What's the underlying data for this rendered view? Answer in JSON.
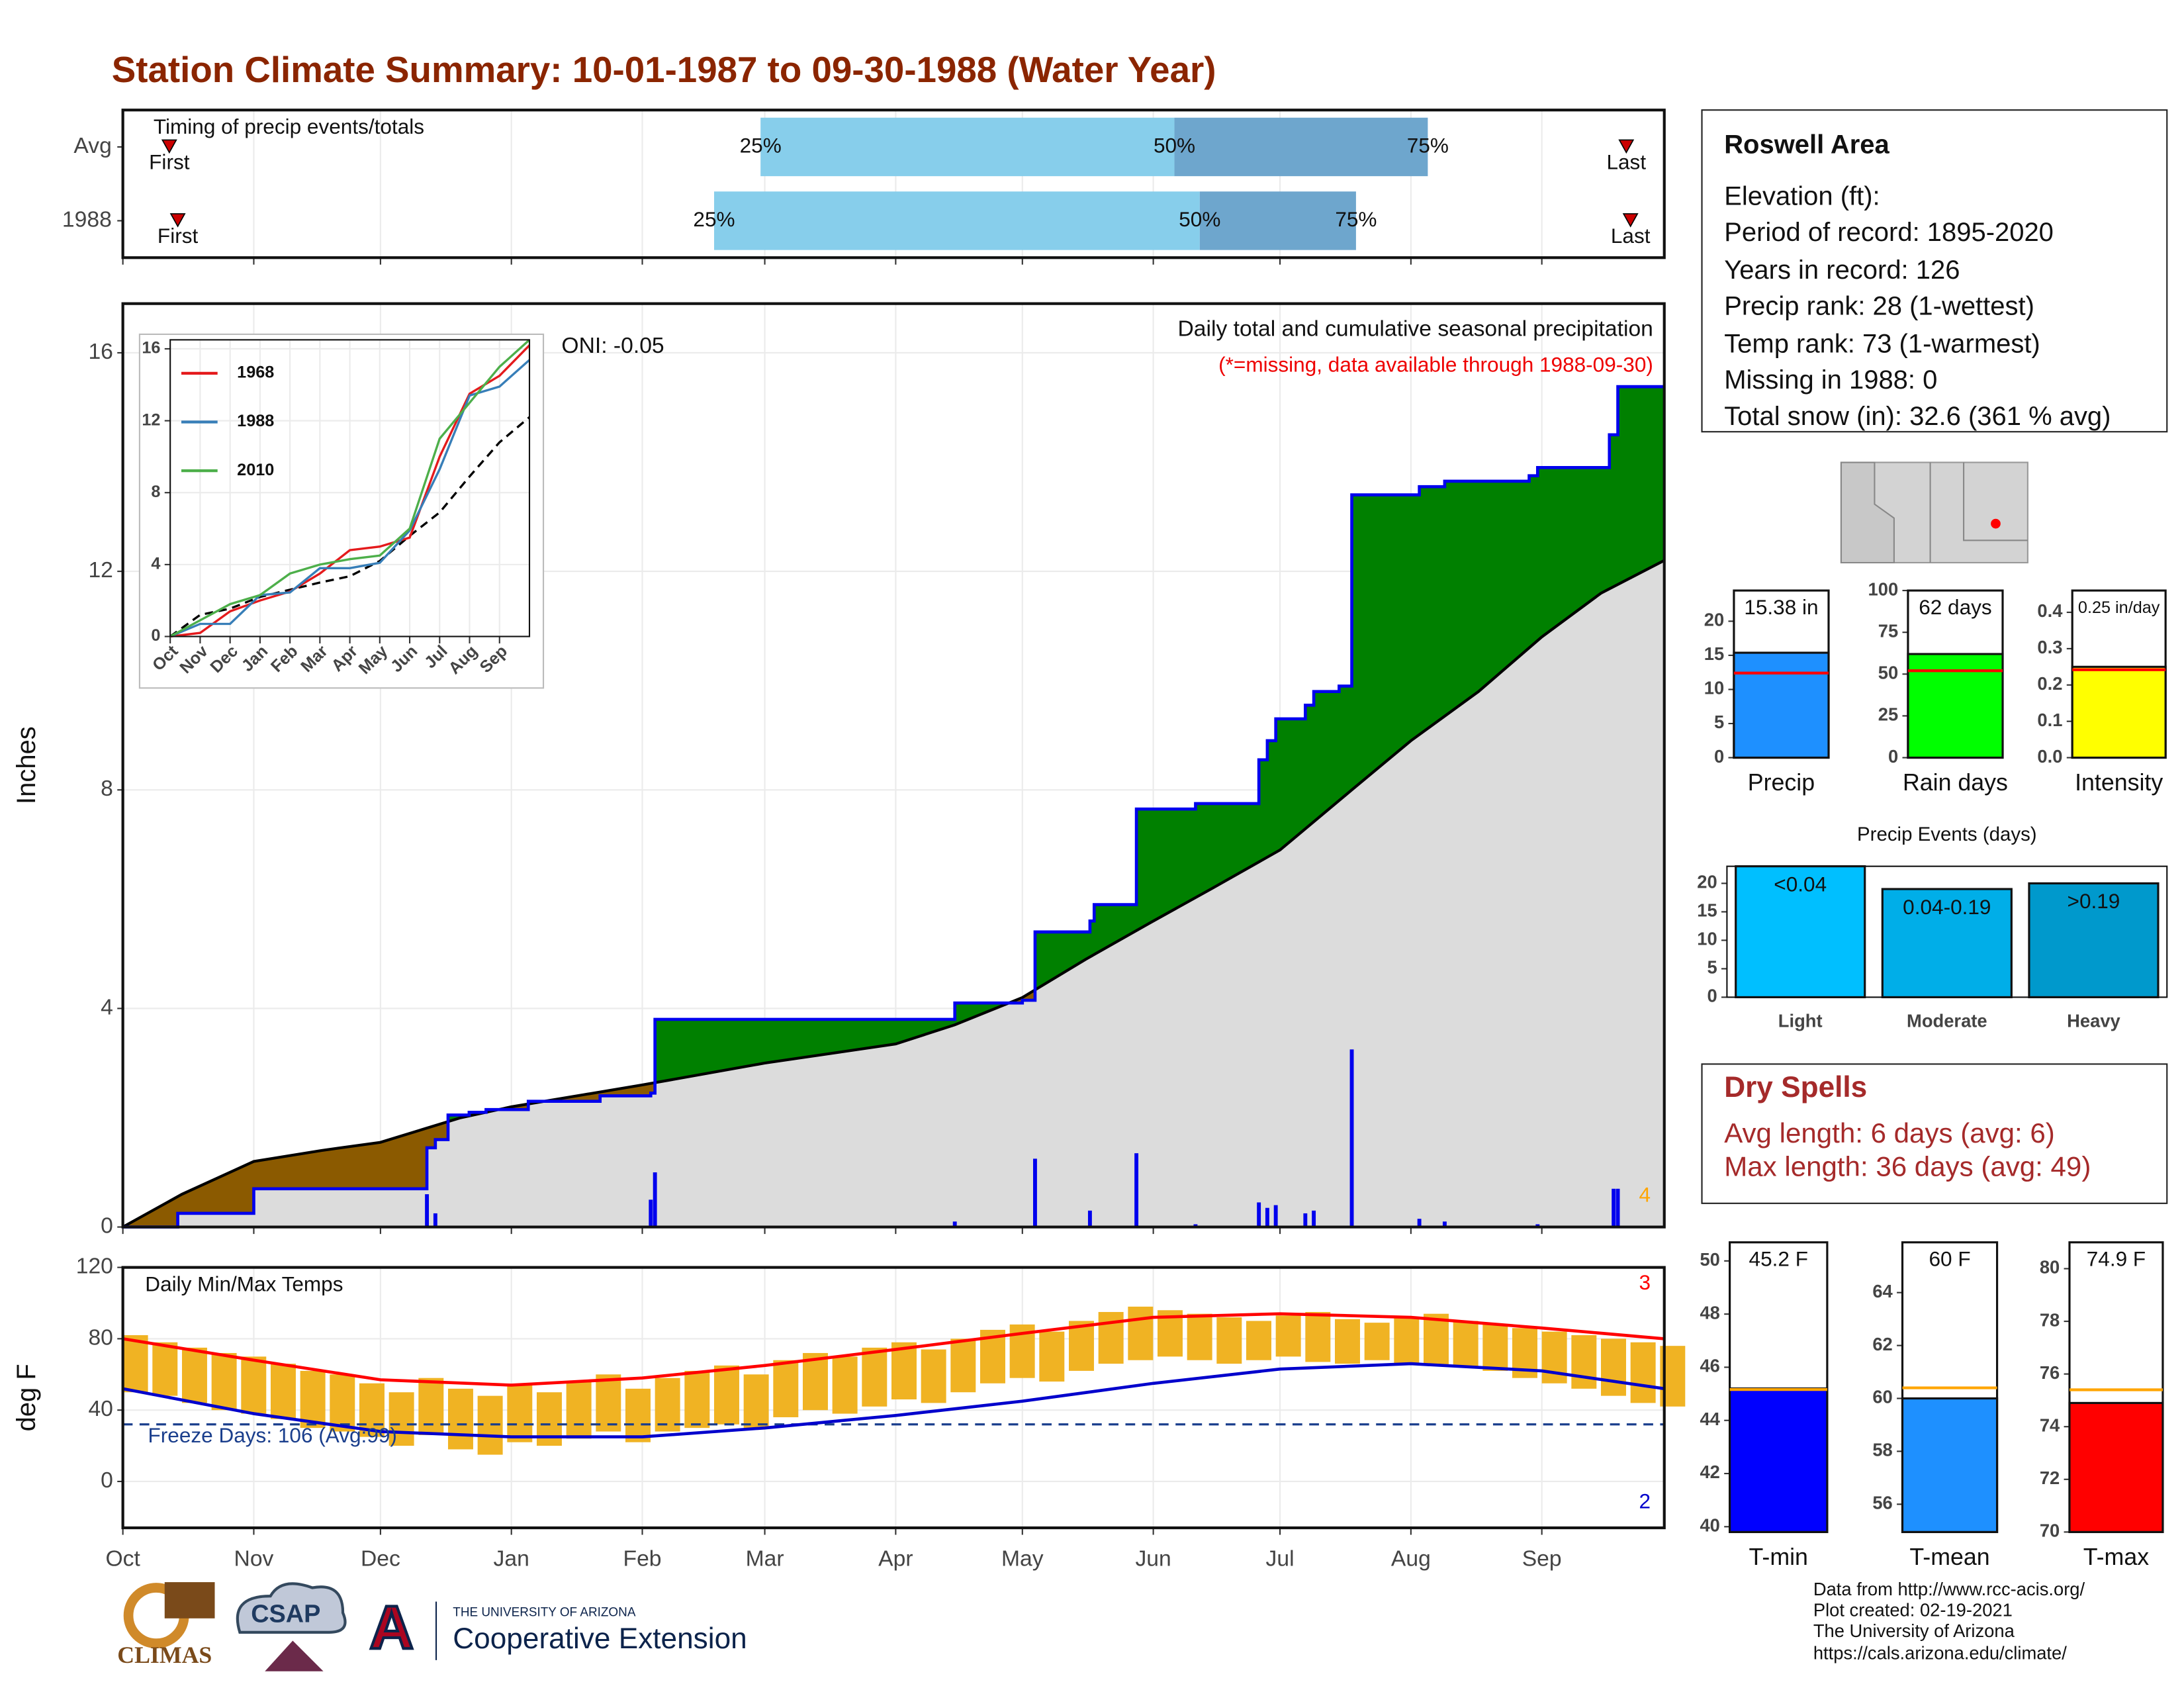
{
  "title": "Station Climate Summary: 10-01-1987 to 09-30-1988 (Water Year)",
  "station": {
    "name": "Roswell Area",
    "lines": [
      "Elevation (ft):",
      "Period of record: 1895-2020",
      "Years in record: 126",
      "Precip rank: 28 (1-wettest)",
      "Temp rank: 73 (1-warmest)",
      "Missing in 1988: 0",
      "Total snow (in): 32.6 (361 % avg)"
    ]
  },
  "dry_spells": {
    "title": "Dry Spells",
    "lines": [
      "Avg length: 6 days (avg: 6)",
      "Max length: 36 days (avg: 49)"
    ]
  },
  "footer": [
    "Data from http://www.rcc-acis.org/",
    "Plot created: 02-19-2021",
    "The University of Arizona",
    "https://cals.arizona.edu/climate/"
  ],
  "logos": {
    "climas": "CLIMAS",
    "csap": "CSAP",
    "ua_small": "THE UNIVERSITY OF ARIZONA",
    "ua_large": "Cooperative Extension"
  },
  "chart_data": [
    {
      "type": "timing",
      "title": "Timing of precip events/totals",
      "xlim": [
        0,
        365
      ],
      "xticks": [
        0,
        31,
        61,
        92,
        123,
        152,
        183,
        213,
        244,
        274,
        305,
        336
      ],
      "grid": true,
      "categories": [
        "Avg",
        "1988"
      ],
      "marker_labels": {
        "first": "First",
        "p25": "25%",
        "p50": "50%",
        "p75": "75%",
        "last": "Last"
      },
      "first": [
        11,
        13
      ],
      "p25": [
        151,
        140
      ],
      "p50": [
        249,
        255
      ],
      "p75": [
        309,
        292
      ],
      "last": [
        356,
        357
      ],
      "colors": {
        "lower": "#87ceeb",
        "upper": "#6ea6cd",
        "marker": "#cc0000"
      }
    },
    {
      "type": "area",
      "subtitle": "Daily total and cumulative seasonal precipitation",
      "note": "(*=missing, data available through 1988-09-30)",
      "annotation": "ONI: -0.05",
      "ylabel": "Inches",
      "count_label": 4,
      "xlim": [
        0,
        365
      ],
      "ylim": [
        0,
        16.9
      ],
      "yticks": [
        0,
        4,
        8,
        12,
        16
      ],
      "xticks": [
        0,
        31,
        61,
        92,
        123,
        152,
        183,
        213,
        244,
        274,
        305,
        336
      ],
      "grid": true,
      "observed": {
        "color": "#0000ee",
        "x": [
          0,
          13,
          31,
          72,
          74,
          77,
          82,
          86,
          96,
          113,
          125,
          126,
          197,
          213,
          216,
          229,
          230,
          240,
          254,
          269,
          271,
          273,
          280,
          282,
          288,
          291,
          307,
          313,
          333,
          335,
          352,
          354,
          365
        ],
        "values": [
          0,
          0.25,
          0.7,
          1.45,
          1.6,
          2.05,
          2.1,
          2.15,
          2.3,
          2.4,
          2.45,
          3.8,
          4.1,
          4.15,
          5.4,
          5.6,
          5.9,
          7.65,
          7.75,
          8.55,
          8.9,
          9.3,
          9.55,
          9.8,
          9.9,
          13.4,
          13.55,
          13.65,
          13.75,
          13.9,
          14.5,
          15.38,
          15.38
        ]
      },
      "normal": {
        "color": "#000000",
        "x": [
          0,
          14,
          31,
          47,
          61,
          80,
          92,
          123,
          152,
          183,
          197,
          213,
          228,
          244,
          258,
          274,
          291,
          305,
          321,
          336,
          350,
          365
        ],
        "values": [
          0,
          0.6,
          1.2,
          1.4,
          1.55,
          2.0,
          2.2,
          2.6,
          3.0,
          3.35,
          3.7,
          4.2,
          4.9,
          5.6,
          6.2,
          6.9,
          8.0,
          8.9,
          9.8,
          10.8,
          11.6,
          12.2
        ]
      },
      "daily": {
        "color": "#0000ee",
        "x": [
          72,
          74,
          125,
          126,
          197,
          216,
          229,
          240,
          254,
          269,
          271,
          273,
          280,
          282,
          291,
          307,
          313,
          335,
          353,
          354
        ],
        "values": [
          0.6,
          0.25,
          0.5,
          1.0,
          0.1,
          1.25,
          0.3,
          1.35,
          0.05,
          0.45,
          0.35,
          0.4,
          0.25,
          0.3,
          3.25,
          0.15,
          0.1,
          0.05,
          0.7,
          0.7
        ]
      },
      "colors": {
        "above": "#008000",
        "below": "#8b5a00",
        "base": "#dcdcdc",
        "count": "#ffa500"
      }
    },
    {
      "type": "line",
      "xlim": [
        0,
        12
      ],
      "ylim": [
        0,
        16.5
      ],
      "yticks": [
        0,
        4,
        8,
        12,
        16
      ],
      "xticks": [
        {
          "value": 0,
          "label": "Oct"
        },
        {
          "value": 1,
          "label": "Nov"
        },
        {
          "value": 2,
          "label": "Dec"
        },
        {
          "value": 3,
          "label": "Jan"
        },
        {
          "value": 4,
          "label": "Feb"
        },
        {
          "value": 5,
          "label": "Mar"
        },
        {
          "value": 6,
          "label": "Apr"
        },
        {
          "value": 7,
          "label": "May"
        },
        {
          "value": 8,
          "label": "Jun"
        },
        {
          "value": 9,
          "label": "Jul"
        },
        {
          "value": 10,
          "label": "Aug"
        },
        {
          "value": 11,
          "label": "Sep"
        }
      ],
      "x": [
        0,
        1,
        2,
        3,
        4,
        5,
        6,
        7,
        8,
        9,
        10,
        11,
        12
      ],
      "series": [
        {
          "name": "1968",
          "color": "#e41a1c",
          "values": [
            0,
            0.2,
            1.4,
            2.0,
            2.5,
            3.5,
            4.8,
            5.0,
            5.5,
            10.0,
            13.5,
            14.5,
            16.2
          ]
        },
        {
          "name": "1988",
          "color": "#377eb8",
          "values": [
            0,
            0.7,
            0.7,
            2.3,
            2.45,
            3.8,
            3.8,
            4.1,
            5.9,
            9.3,
            13.4,
            13.9,
            15.38
          ]
        },
        {
          "name": "2010",
          "color": "#4daf4a",
          "values": [
            0,
            0.9,
            1.8,
            2.3,
            3.5,
            4.0,
            4.3,
            4.5,
            6.0,
            11.0,
            13.0,
            15.0,
            16.5
          ]
        }
      ],
      "normal": {
        "color": "#000000",
        "values": [
          0,
          1.2,
          1.55,
          2.2,
          2.6,
          3.0,
          3.35,
          4.2,
          5.6,
          6.9,
          8.9,
          10.8,
          12.2
        ]
      }
    },
    {
      "type": "range_bar",
      "title": "Daily Min/Max Temps",
      "ylabel": "deg F",
      "xlim": [
        0,
        365
      ],
      "ylim": [
        -26,
        120
      ],
      "yticks": [
        0,
        40,
        80,
        120
      ],
      "grid": true,
      "xticks": [
        {
          "value": 0,
          "label": "Oct"
        },
        {
          "value": 31,
          "label": "Nov"
        },
        {
          "value": 61,
          "label": "Dec"
        },
        {
          "value": 92,
          "label": "Jan"
        },
        {
          "value": 123,
          "label": "Feb"
        },
        {
          "value": 152,
          "label": "Mar"
        },
        {
          "value": 183,
          "label": "Apr"
        },
        {
          "value": 213,
          "label": "May"
        },
        {
          "value": 244,
          "label": "Jun"
        },
        {
          "value": 274,
          "label": "Jul"
        },
        {
          "value": 305,
          "label": "Aug"
        },
        {
          "value": 336,
          "label": "Sep"
        }
      ],
      "x": [
        0,
        7,
        14,
        21,
        28,
        35,
        42,
        49,
        56,
        63,
        70,
        77,
        84,
        91,
        98,
        105,
        112,
        119,
        126,
        133,
        140,
        147,
        154,
        161,
        168,
        175,
        182,
        189,
        196,
        203,
        210,
        217,
        224,
        231,
        238,
        245,
        252,
        259,
        266,
        273,
        280,
        287,
        294,
        301,
        308,
        315,
        322,
        329,
        336,
        343,
        350,
        357,
        364
      ],
      "max": [
        82,
        78,
        75,
        72,
        70,
        66,
        62,
        60,
        55,
        50,
        58,
        52,
        48,
        54,
        50,
        56,
        60,
        52,
        58,
        62,
        65,
        60,
        68,
        72,
        70,
        75,
        78,
        74,
        80,
        85,
        88,
        84,
        90,
        95,
        98,
        96,
        94,
        92,
        90,
        93,
        95,
        91,
        89,
        92,
        94,
        90,
        88,
        86,
        84,
        82,
        80,
        78,
        76
      ],
      "min": [
        50,
        48,
        44,
        40,
        38,
        35,
        30,
        28,
        25,
        20,
        26,
        18,
        15,
        22,
        20,
        24,
        28,
        22,
        28,
        30,
        32,
        30,
        36,
        40,
        38,
        42,
        46,
        44,
        50,
        55,
        58,
        56,
        62,
        66,
        68,
        70,
        68,
        66,
        68,
        70,
        67,
        66,
        68,
        66,
        65,
        64,
        62,
        58,
        55,
        52,
        48,
        44,
        42
      ],
      "color": "#f0b323",
      "normal_x": [
        0,
        31,
        61,
        92,
        123,
        152,
        183,
        213,
        244,
        274,
        305,
        336,
        365
      ],
      "normal_max": [
        80,
        68,
        57,
        54,
        58,
        65,
        74,
        83,
        92,
        94,
        92,
        86,
        80
      ],
      "normal_min": [
        52,
        38,
        28,
        25,
        25,
        30,
        37,
        45,
        55,
        63,
        66,
        62,
        52
      ],
      "normal_colors": {
        "max": "#ff0000",
        "min": "#0000cc"
      },
      "freeze_line": 32,
      "freeze_label": "Freeze Days: 106 (Avg:99)",
      "count_high": 3,
      "count_low": 2
    },
    {
      "type": "gauge",
      "label": "Precip",
      "value": 15.38,
      "value_label": "15.38 in",
      "avg": 12.4,
      "ylim": [
        0,
        24.5
      ],
      "yticks": [
        0,
        5,
        10,
        15,
        20
      ],
      "color": "#1e90ff",
      "avg_color": "#ff0000"
    },
    {
      "type": "gauge",
      "label": "Rain days",
      "value": 62,
      "value_label": "62 days",
      "avg": 52,
      "ylim": [
        0,
        100
      ],
      "yticks": [
        0,
        25,
        50,
        75,
        100
      ],
      "color": "#00ff00",
      "avg_color": "#ff0000"
    },
    {
      "type": "gauge",
      "label": "Intensity",
      "value": 0.25,
      "value_label": "0.25 in/day",
      "avg": 0.242,
      "ylim": [
        0,
        0.46
      ],
      "yticks": [
        {
          "value": 0,
          "label": "0.0"
        },
        0.1,
        0.2,
        0.3,
        0.4
      ],
      "color": "#ffff00",
      "avg_color": "#ff0000"
    },
    {
      "type": "bar",
      "title": "Precip Events (days)",
      "categories": [
        "Light",
        "Moderate",
        "Heavy"
      ],
      "bin_labels": [
        "<0.04",
        "0.04-0.19",
        ">0.19"
      ],
      "values": [
        23,
        19,
        20
      ],
      "colors": [
        "#00bfff",
        "#00aee8",
        "#0099cc"
      ],
      "ylim": [
        0,
        23
      ],
      "yticks": [
        0,
        5,
        10,
        15,
        20
      ]
    },
    {
      "type": "gauge",
      "label": "T-min",
      "value": 45.2,
      "value_label": "45.2 F",
      "avg": 45.16,
      "ylim": [
        39.8,
        50.7
      ],
      "yticks": [
        40,
        42,
        44,
        46,
        48,
        50
      ],
      "color": "#0000ff",
      "avg_color": "#ffa500"
    },
    {
      "type": "gauge",
      "label": "T-mean",
      "value": 60,
      "value_label": "60 F",
      "avg": 60.4,
      "ylim": [
        54.95,
        65.9
      ],
      "yticks": [
        56,
        58,
        60,
        62,
        64
      ],
      "color": "#1e90ff",
      "avg_color": "#ffa500"
    },
    {
      "type": "gauge",
      "label": "T-max",
      "value": 74.9,
      "value_label": "74.9 F",
      "avg": 75.4,
      "ylim": [
        70,
        81
      ],
      "yticks": [
        70,
        72,
        74,
        76,
        78,
        80
      ],
      "color": "#ff0000",
      "avg_color": "#ffa500"
    }
  ]
}
